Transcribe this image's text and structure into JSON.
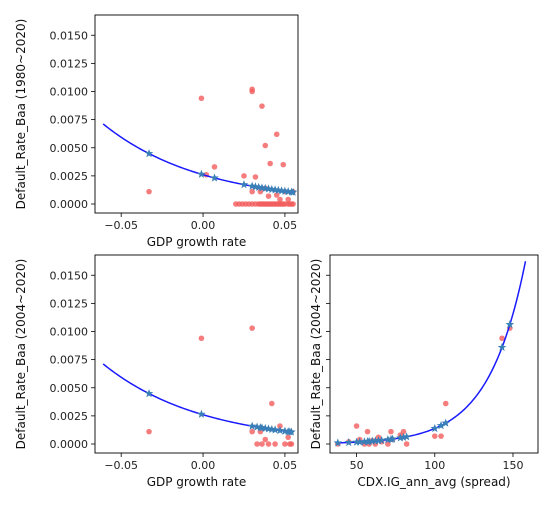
{
  "chart_data": [
    {
      "type": "scatter",
      "xlabel": "GDP growth rate",
      "ylabel": "Default_Rate_Baa (1980~2020)",
      "xlim": [
        -0.066,
        0.058
      ],
      "ylim": [
        -0.0008,
        0.0168
      ],
      "xticks": [
        -0.05,
        0.0,
        0.05
      ],
      "xtick_labels": [
        "−0.05",
        "0.00",
        "0.05"
      ],
      "yticks": [
        0.0,
        0.0025,
        0.005,
        0.0075,
        0.01,
        0.0125,
        0.015
      ],
      "ytick_labels": [
        "0.0000",
        "0.0025",
        "0.0050",
        "0.0075",
        "0.0100",
        "0.0125",
        "0.0150"
      ],
      "observed": {
        "color": "#f25c5c",
        "points": [
          [
            -0.033,
            0.0011
          ],
          [
            -0.001,
            0.0094
          ],
          [
            0.007,
            0.0033
          ],
          [
            0.002,
            0.0026
          ],
          [
            0.025,
            0.0025
          ],
          [
            0.03,
            0.0102
          ],
          [
            0.03,
            0.01
          ],
          [
            0.036,
            0.0087
          ],
          [
            0.041,
            0.0036
          ],
          [
            0.045,
            0.0062
          ],
          [
            0.049,
            0.0035
          ],
          [
            0.038,
            0.0052
          ],
          [
            0.032,
            0.0024
          ],
          [
            0.038,
            0.0014
          ],
          [
            0.04,
            0.0007
          ],
          [
            0.045,
            0.0008
          ],
          [
            0.03,
            0.0011
          ],
          [
            0.035,
            0.0011
          ],
          [
            0.05,
            0.0011
          ],
          [
            0.055,
            0.0011
          ],
          [
            0.047,
            0.0004
          ],
          [
            0.052,
            0.0004
          ],
          [
            0.02,
            0.0
          ],
          [
            0.022,
            0.0
          ],
          [
            0.024,
            0.0
          ],
          [
            0.026,
            0.0
          ],
          [
            0.028,
            0.0
          ],
          [
            0.03,
            0.0
          ],
          [
            0.032,
            0.0
          ],
          [
            0.034,
            0.0
          ],
          [
            0.035,
            0.0
          ],
          [
            0.036,
            0.0
          ],
          [
            0.037,
            0.0
          ],
          [
            0.038,
            0.0
          ],
          [
            0.039,
            0.0
          ],
          [
            0.04,
            0.0
          ],
          [
            0.041,
            0.0
          ],
          [
            0.042,
            0.0
          ],
          [
            0.043,
            0.0
          ],
          [
            0.044,
            0.0
          ],
          [
            0.045,
            0.0
          ],
          [
            0.046,
            0.0
          ],
          [
            0.047,
            0.0
          ],
          [
            0.048,
            0.0
          ],
          [
            0.049,
            0.0
          ],
          [
            0.05,
            0.0
          ],
          [
            0.052,
            0.0
          ],
          [
            0.053,
            0.0
          ],
          [
            0.054,
            0.0
          ],
          [
            0.055,
            0.0
          ]
        ]
      },
      "fit": {
        "color": "#1a1aff",
        "model": "exponential",
        "a": 0.0026,
        "b": -16.5,
        "x_range": [
          -0.061,
          0.055
        ]
      },
      "fitted": {
        "color": "#3a7fb8",
        "x": [
          -0.033,
          -0.001,
          0.007,
          0.025,
          0.03,
          0.032,
          0.034,
          0.036,
          0.038,
          0.04,
          0.042,
          0.044,
          0.046,
          0.048,
          0.05,
          0.052,
          0.054,
          0.055
        ]
      }
    },
    {
      "type": "scatter",
      "xlabel": "GDP growth rate",
      "ylabel": "Default_Rate_Baa (2004~2020)",
      "xlim": [
        -0.066,
        0.058
      ],
      "ylim": [
        -0.0008,
        0.0168
      ],
      "xticks": [
        -0.05,
        0.0,
        0.05
      ],
      "xtick_labels": [
        "−0.05",
        "0.00",
        "0.05"
      ],
      "yticks": [
        0.0,
        0.0025,
        0.005,
        0.0075,
        0.01,
        0.0125,
        0.015
      ],
      "ytick_labels": [
        "0.0000",
        "0.0025",
        "0.0050",
        "0.0075",
        "0.0100",
        "0.0125",
        "0.0150"
      ],
      "observed": {
        "color": "#f25c5c",
        "points": [
          [
            -0.033,
            0.0011
          ],
          [
            -0.001,
            0.0094
          ],
          [
            0.03,
            0.0103
          ],
          [
            0.042,
            0.0036
          ],
          [
            0.047,
            0.0016
          ],
          [
            0.03,
            0.0011
          ],
          [
            0.035,
            0.0011
          ],
          [
            0.038,
            0.0004
          ],
          [
            0.052,
            0.0006
          ],
          [
            0.033,
            0.0
          ],
          [
            0.036,
            0.0
          ],
          [
            0.04,
            0.0
          ],
          [
            0.044,
            0.0
          ],
          [
            0.05,
            0.0
          ],
          [
            0.053,
            0.0
          ],
          [
            0.054,
            0.0
          ]
        ]
      },
      "fit": {
        "color": "#1a1aff",
        "model": "exponential",
        "a": 0.0026,
        "b": -16.5,
        "x_range": [
          -0.061,
          0.055
        ]
      },
      "fitted": {
        "color": "#3a7fb8",
        "x": [
          -0.033,
          -0.001,
          0.03,
          0.033,
          0.035,
          0.036,
          0.038,
          0.04,
          0.042,
          0.044,
          0.047,
          0.05,
          0.052,
          0.053,
          0.054
        ]
      }
    },
    {
      "type": "scatter",
      "xlabel": "CDX.IG_ann_avg (spread)",
      "ylabel": "Default_Rate_Baa (2004~2020)",
      "xlim": [
        33,
        166
      ],
      "ylim": [
        -0.0008,
        0.0168
      ],
      "xticks": [
        50,
        100,
        150
      ],
      "xtick_labels": [
        "50",
        "100",
        "150"
      ],
      "yticks": [
        0.0,
        0.0025,
        0.005,
        0.0075,
        0.01,
        0.0125,
        0.015
      ],
      "ytick_labels": [],
      "observed": {
        "color": "#f25c5c",
        "points": [
          [
            38,
            0.0
          ],
          [
            45,
            0.0002
          ],
          [
            50,
            0.0016
          ],
          [
            52,
            0.0004
          ],
          [
            55,
            0.0
          ],
          [
            57,
            0.0011
          ],
          [
            58,
            0.0
          ],
          [
            60,
            0.0003
          ],
          [
            62,
            0.0
          ],
          [
            64,
            0.0006
          ],
          [
            66,
            0.0002
          ],
          [
            70,
            0.0
          ],
          [
            72,
            0.0011
          ],
          [
            73,
            0.0004
          ],
          [
            78,
            0.0008
          ],
          [
            80,
            0.0011
          ],
          [
            82,
            0.0
          ],
          [
            100,
            0.0007
          ],
          [
            104,
            0.0007
          ],
          [
            107,
            0.0036
          ],
          [
            143,
            0.0094
          ],
          [
            148,
            0.0103
          ]
        ]
      },
      "fit": {
        "color": "#1a1aff",
        "model": "exponential",
        "a": 1.97e-05,
        "b": 0.0425,
        "x_range": [
          38,
          158
        ]
      },
      "fitted": {
        "color": "#3a7fb8",
        "x": [
          38,
          45,
          50,
          52,
          55,
          57,
          58,
          60,
          62,
          64,
          66,
          70,
          72,
          73,
          78,
          80,
          82,
          100,
          104,
          107,
          143,
          148
        ]
      }
    }
  ]
}
